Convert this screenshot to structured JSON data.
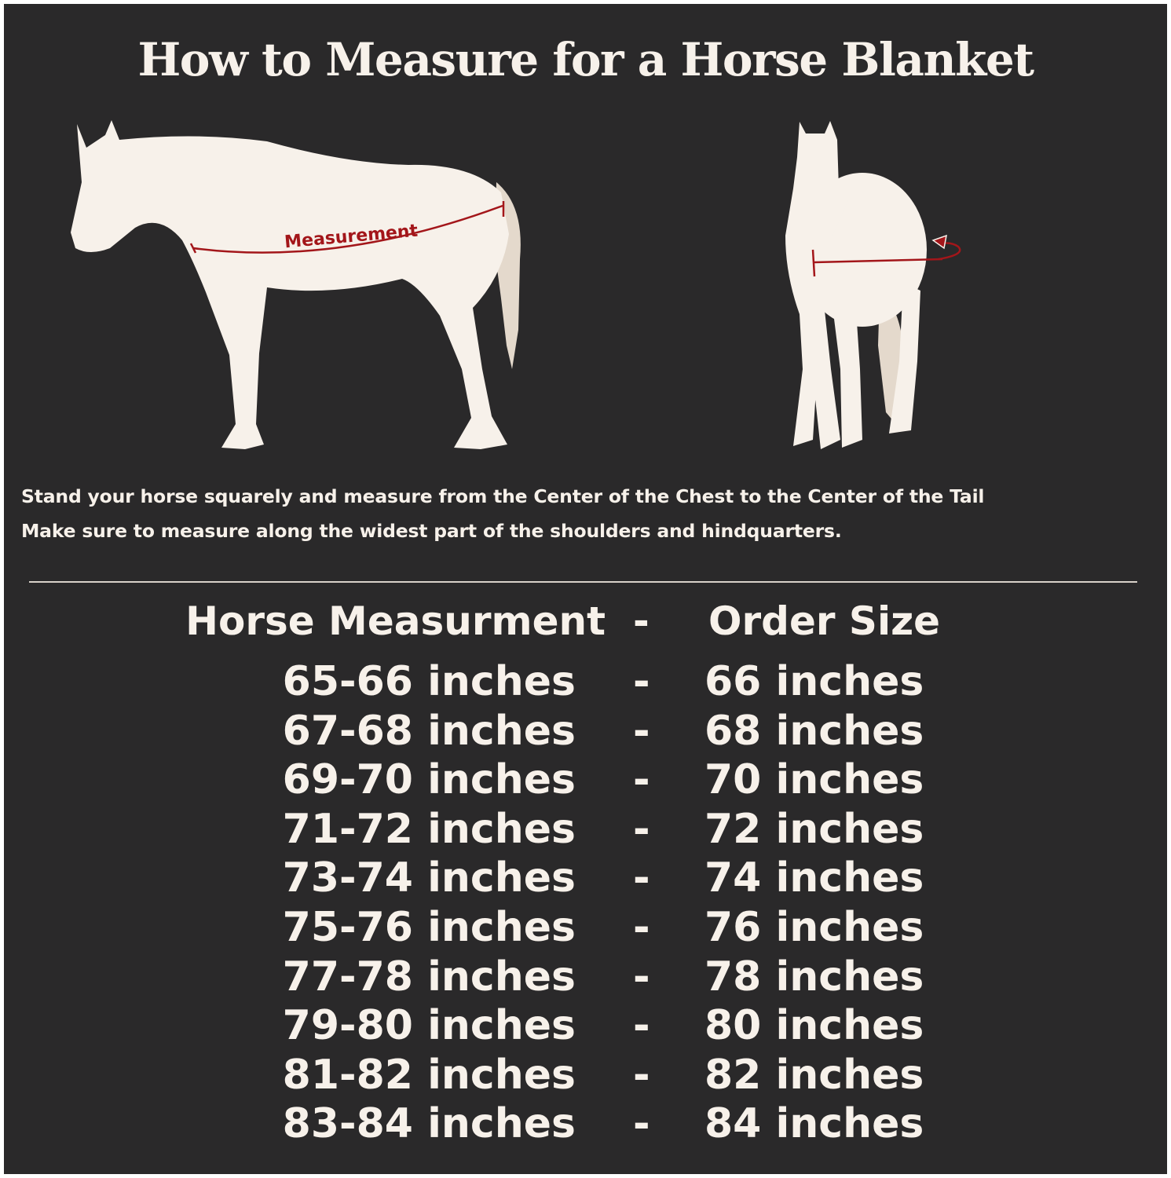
{
  "title": "How to Measure for a Horse Blanket",
  "diagram": {
    "side_label": "Measurement",
    "colors": {
      "background": "#2a292a",
      "horse": "#f7f1ea",
      "tail": "#e4d9cc",
      "measure_line": "#a3161a"
    }
  },
  "instructions": [
    "Stand your horse squarely and measure from the Center of the Chest to the Center of the Tail",
    "Make sure to measure along the widest part of the shoulders and hindquarters."
  ],
  "table": {
    "headers": {
      "measurement": "Horse Measurment",
      "separator": "-",
      "size": "Order Size"
    },
    "rows": [
      {
        "measurement": "65-66 inches",
        "separator": "-",
        "size": "66 inches"
      },
      {
        "measurement": "67-68 inches",
        "separator": "-",
        "size": "68 inches"
      },
      {
        "measurement": "69-70 inches",
        "separator": "-",
        "size": "70 inches"
      },
      {
        "measurement": "71-72 inches",
        "separator": "-",
        "size": "72 inches"
      },
      {
        "measurement": "73-74 inches",
        "separator": "-",
        "size": "74 inches"
      },
      {
        "measurement": "75-76 inches",
        "separator": "-",
        "size": "76 inches"
      },
      {
        "measurement": "77-78 inches",
        "separator": "-",
        "size": "78 inches"
      },
      {
        "measurement": "79-80 inches",
        "separator": "-",
        "size": "80 inches"
      },
      {
        "measurement": "81-82 inches",
        "separator": "-",
        "size": "82 inches"
      },
      {
        "measurement": "83-84 inches",
        "separator": "-",
        "size": "84 inches"
      }
    ]
  }
}
